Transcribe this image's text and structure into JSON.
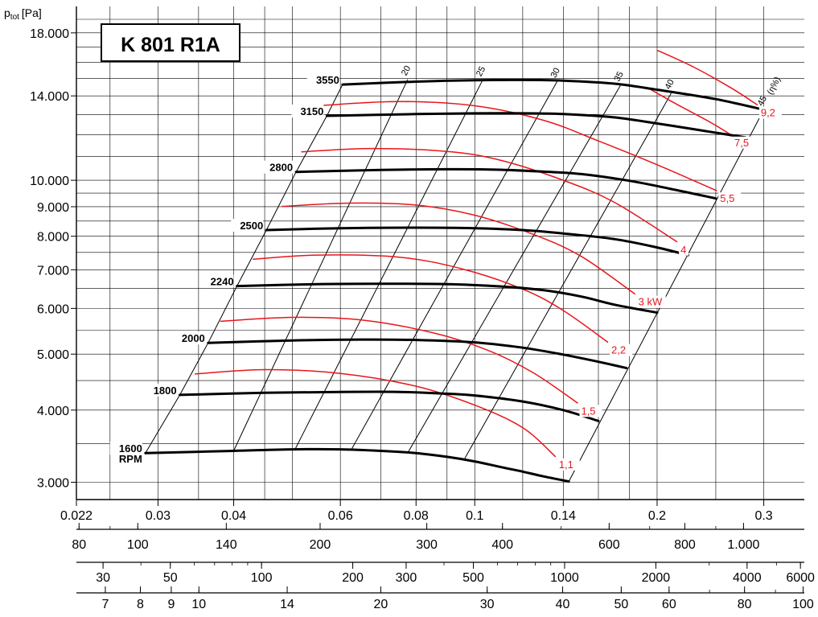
{
  "chart_data": {
    "type": "line",
    "title": "K 801 R1A",
    "ylabel_main": "p",
    "ylabel_sub": "tot",
    "ylabel_unit": "[Pa]",
    "y_scale": "log",
    "y_ticks": [
      {
        "value": 3000,
        "label": "3.000"
      },
      {
        "value": 4000,
        "label": "4.000"
      },
      {
        "value": 5000,
        "label": "5.000"
      },
      {
        "value": 6000,
        "label": "6.000"
      },
      {
        "value": 7000,
        "label": "7.000"
      },
      {
        "value": 8000,
        "label": "8.000"
      },
      {
        "value": 9000,
        "label": "9.000"
      },
      {
        "value": 10000,
        "label": "10.000"
      },
      {
        "value": 14000,
        "label": "14.000"
      },
      {
        "value": 18000,
        "label": "18.000"
      }
    ],
    "x_scale": "log",
    "x_ticks": [
      {
        "value": 0.022,
        "label": "0.022"
      },
      {
        "value": 0.03,
        "label": "0.03"
      },
      {
        "value": 0.04,
        "label": "0.04"
      },
      {
        "value": 0.06,
        "label": "0.06"
      },
      {
        "value": 0.08,
        "label": "0.08"
      },
      {
        "value": 0.1,
        "label": "0.1"
      },
      {
        "value": 0.14,
        "label": "0.14"
      },
      {
        "value": 0.2,
        "label": "0.2"
      },
      {
        "value": 0.3,
        "label": "0.3"
      }
    ],
    "aux_axis_1": [
      {
        "value": 80,
        "label": "80"
      },
      {
        "value": 100,
        "label": "100"
      },
      {
        "value": 140,
        "label": "140"
      },
      {
        "value": 200,
        "label": "200"
      },
      {
        "value": 300,
        "label": "300"
      },
      {
        "value": 400,
        "label": "400"
      },
      {
        "value": 600,
        "label": "600"
      },
      {
        "value": 800,
        "label": "800"
      },
      {
        "value": 1000,
        "label": "1.000"
      }
    ],
    "aux_axis_2": [
      {
        "value": 30,
        "label": "30"
      },
      {
        "value": 50,
        "label": "50"
      },
      {
        "value": 100,
        "label": "100"
      },
      {
        "value": 200,
        "label": "200"
      },
      {
        "value": 300,
        "label": "300"
      },
      {
        "value": 500,
        "label": "500"
      },
      {
        "value": 1000,
        "label": "1000"
      },
      {
        "value": 2000,
        "label": "2000"
      },
      {
        "value": 4000,
        "label": "4000"
      },
      {
        "value": 6000,
        "label": "6000"
      }
    ],
    "aux_axis_3": [
      {
        "value": 7,
        "label": "7"
      },
      {
        "value": 8,
        "label": "8"
      },
      {
        "value": 9,
        "label": "9"
      },
      {
        "value": 10,
        "label": "10"
      },
      {
        "value": 14,
        "label": "14"
      },
      {
        "value": 20,
        "label": "20"
      },
      {
        "value": 30,
        "label": "30"
      },
      {
        "value": 40,
        "label": "40"
      },
      {
        "value": 50,
        "label": "50"
      },
      {
        "value": 60,
        "label": "60"
      },
      {
        "value": 80,
        "label": "80"
      },
      {
        "value": 100,
        "label": "100"
      }
    ],
    "speed_curves": [
      {
        "label": "1600",
        "unit": "RPM",
        "points": [
          [
            0.0286,
            3370
          ],
          [
            0.04,
            3400
          ],
          [
            0.05,
            3420
          ],
          [
            0.06,
            3420
          ],
          [
            0.07,
            3400
          ],
          [
            0.08,
            3370
          ],
          [
            0.09,
            3320
          ],
          [
            0.1,
            3260
          ],
          [
            0.11,
            3190
          ],
          [
            0.12,
            3130
          ],
          [
            0.13,
            3070
          ],
          [
            0.143,
            3010
          ]
        ]
      },
      {
        "label": "1800",
        "points": [
          [
            0.0326,
            4250
          ],
          [
            0.045,
            4285
          ],
          [
            0.06,
            4300
          ],
          [
            0.075,
            4300
          ],
          [
            0.09,
            4270
          ],
          [
            0.1,
            4240
          ],
          [
            0.12,
            4140
          ],
          [
            0.14,
            4000
          ],
          [
            0.16,
            3830
          ]
        ]
      },
      {
        "label": "2000",
        "points": [
          [
            0.0363,
            5230
          ],
          [
            0.05,
            5280
          ],
          [
            0.065,
            5300
          ],
          [
            0.08,
            5290
          ],
          [
            0.1,
            5240
          ],
          [
            0.12,
            5130
          ],
          [
            0.14,
            4990
          ],
          [
            0.16,
            4850
          ],
          [
            0.178,
            4730
          ]
        ]
      },
      {
        "label": "2240",
        "points": [
          [
            0.0405,
            6560
          ],
          [
            0.055,
            6610
          ],
          [
            0.07,
            6620
          ],
          [
            0.09,
            6610
          ],
          [
            0.11,
            6550
          ],
          [
            0.13,
            6450
          ],
          [
            0.15,
            6290
          ],
          [
            0.17,
            6090
          ],
          [
            0.2,
            5900
          ]
        ]
      },
      {
        "label": "2500",
        "points": [
          [
            0.0453,
            8200
          ],
          [
            0.06,
            8260
          ],
          [
            0.08,
            8280
          ],
          [
            0.1,
            8260
          ],
          [
            0.12,
            8200
          ],
          [
            0.14,
            8090
          ],
          [
            0.17,
            7910
          ],
          [
            0.2,
            7650
          ],
          [
            0.225,
            7420
          ]
        ]
      },
      {
        "label": "2800",
        "points": [
          [
            0.0507,
            10340
          ],
          [
            0.07,
            10420
          ],
          [
            0.09,
            10450
          ],
          [
            0.11,
            10430
          ],
          [
            0.13,
            10350
          ],
          [
            0.15,
            10250
          ],
          [
            0.18,
            9980
          ],
          [
            0.21,
            9670
          ],
          [
            0.25,
            9300
          ]
        ]
      },
      {
        "label": "3150",
        "points": [
          [
            0.057,
            12930
          ],
          [
            0.08,
            13020
          ],
          [
            0.1,
            13060
          ],
          [
            0.12,
            13060
          ],
          [
            0.14,
            13020
          ],
          [
            0.17,
            12850
          ],
          [
            0.2,
            12540
          ],
          [
            0.23,
            12260
          ],
          [
            0.28,
            11860
          ]
        ]
      },
      {
        "label": "3550",
        "points": [
          [
            0.0605,
            14650
          ],
          [
            0.08,
            14820
          ],
          [
            0.1,
            14900
          ],
          [
            0.12,
            14920
          ],
          [
            0.14,
            14880
          ],
          [
            0.17,
            14700
          ],
          [
            0.2,
            14350
          ],
          [
            0.25,
            13820
          ],
          [
            0.3,
            13250
          ]
        ]
      }
    ],
    "power_curves": [
      {
        "label": "1,1",
        "points": [
          [
            0.0345,
            4620
          ],
          [
            0.045,
            4700
          ],
          [
            0.06,
            4630
          ],
          [
            0.08,
            4400
          ],
          [
            0.1,
            4080
          ],
          [
            0.12,
            3730
          ],
          [
            0.136,
            3320
          ]
        ]
      },
      {
        "label": "1,5",
        "points": [
          [
            0.038,
            5700
          ],
          [
            0.05,
            5790
          ],
          [
            0.065,
            5730
          ],
          [
            0.085,
            5450
          ],
          [
            0.105,
            5080
          ],
          [
            0.125,
            4640
          ],
          [
            0.148,
            4110
          ]
        ]
      },
      {
        "label": "2,2",
        "points": [
          [
            0.043,
            7300
          ],
          [
            0.055,
            7420
          ],
          [
            0.075,
            7360
          ],
          [
            0.095,
            7030
          ],
          [
            0.12,
            6480
          ],
          [
            0.14,
            5950
          ],
          [
            0.166,
            5240
          ]
        ]
      },
      {
        "label": "3 kW",
        "points": [
          [
            0.048,
            9010
          ],
          [
            0.062,
            9130
          ],
          [
            0.08,
            9060
          ],
          [
            0.1,
            8700
          ],
          [
            0.125,
            8060
          ],
          [
            0.15,
            7380
          ],
          [
            0.184,
            6350
          ]
        ]
      },
      {
        "label": "4",
        "points": [
          [
            0.0517,
            11200
          ],
          [
            0.067,
            11350
          ],
          [
            0.09,
            11220
          ],
          [
            0.11,
            10840
          ],
          [
            0.14,
            10000
          ],
          [
            0.17,
            9160
          ],
          [
            0.216,
            7820
          ]
        ]
      },
      {
        "label": "5,5",
        "points": [
          [
            0.056,
            13480
          ],
          [
            0.075,
            13690
          ],
          [
            0.1,
            13460
          ],
          [
            0.13,
            12700
          ],
          [
            0.16,
            11700
          ],
          [
            0.2,
            10640
          ],
          [
            0.251,
            9590
          ]
        ]
      },
      {
        "label": "7,5",
        "points": [
          [
            0.193,
            14460
          ],
          [
            0.215,
            13560
          ],
          [
            0.245,
            12600
          ],
          [
            0.265,
            11980
          ]
        ]
      },
      {
        "label": "9,2",
        "points": [
          [
            0.2,
            16800
          ],
          [
            0.23,
            15700
          ],
          [
            0.265,
            14450
          ],
          [
            0.293,
            13500
          ]
        ]
      }
    ],
    "efficiency_lines": [
      {
        "label": "20",
        "points": [
          [
            0.04,
            3400
          ],
          [
            0.0775,
            14950
          ]
        ]
      },
      {
        "label": "25",
        "points": [
          [
            0.0505,
            3420
          ],
          [
            0.103,
            14900
          ]
        ]
      },
      {
        "label": "30",
        "points": [
          [
            0.0626,
            3420
          ],
          [
            0.1367,
            14820
          ]
        ]
      },
      {
        "label": "35",
        "points": [
          [
            0.0776,
            3380
          ],
          [
            0.174,
            14600
          ]
        ]
      },
      {
        "label": "40",
        "points": [
          [
            0.0963,
            3300
          ],
          [
            0.211,
            14150
          ]
        ]
      },
      {
        "label": "45",
        "points": [
          [
            0.143,
            3010
          ],
          [
            0.3,
            13250
          ]
        ]
      }
    ],
    "efficiency_unit_label": "(η%)",
    "grid": true
  }
}
